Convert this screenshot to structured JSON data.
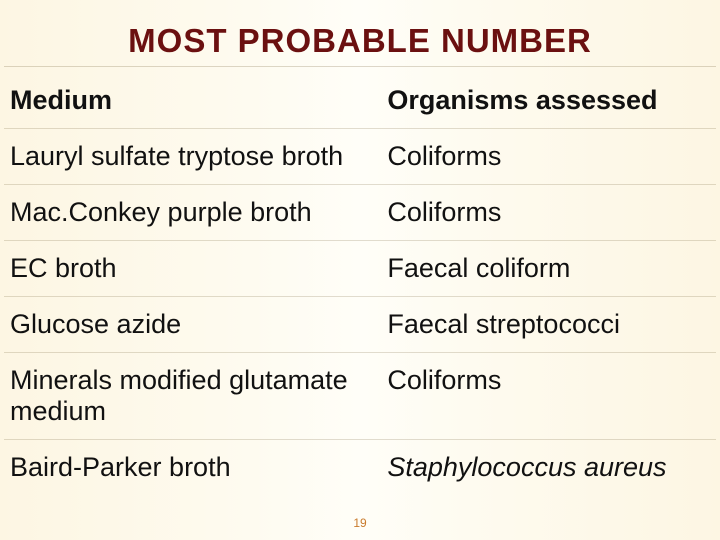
{
  "title": {
    "text": "MOST PROBABLE NUMBER",
    "color": "#6b1010",
    "fontsize": 33
  },
  "table": {
    "columns": [
      "Medium",
      "Organisms assessed"
    ],
    "header_fontsize": 27,
    "cell_fontsize": 27,
    "border_color": "rgba(120,100,60,0.22)",
    "rows": [
      {
        "medium": "Lauryl sulfate tryptose broth",
        "organisms": "Coliforms",
        "italic": false
      },
      {
        "medium": "Mac.Conkey purple broth",
        "organisms": "Coliforms",
        "italic": false
      },
      {
        "medium": "EC broth",
        "organisms": "Faecal coliform",
        "italic": false
      },
      {
        "medium": "Glucose azide",
        "organisms": "Faecal streptococci",
        "italic": false
      },
      {
        "medium": "Minerals modified glutamate medium",
        "organisms": "Coliforms",
        "italic": false
      },
      {
        "medium": "Baird-Parker broth",
        "organisms": "Staphylococcus aureus",
        "italic": true
      }
    ]
  },
  "page_number": "19",
  "page_number_color": "#c97b2d",
  "background_gradient": {
    "stops": [
      "#fdf6e3",
      "#fdf8e8",
      "#fefbf0",
      "#fffef8",
      "#fefbf0",
      "#fdf8e8",
      "#fdf6e3"
    ]
  }
}
